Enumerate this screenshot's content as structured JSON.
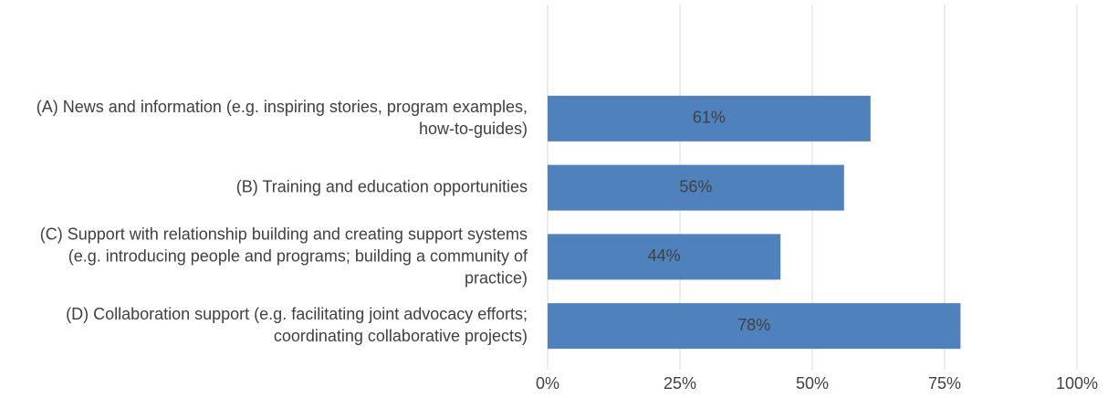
{
  "chart_data": {
    "type": "bar",
    "orientation": "horizontal",
    "categories": [
      "(A) News and information (e.g. inspiring stories, program examples, how-to-guides)",
      "(B) Training and education opportunities",
      "(C) Support with relationship building and creating support systems (e.g. introducing people and programs; building a community of practice)",
      "(D) Collaboration support (e.g. facilitating joint advocacy efforts; coordinating collaborative projects)"
    ],
    "values": [
      61,
      56,
      44,
      78
    ],
    "value_labels": [
      "61%",
      "56%",
      "44%",
      "78%"
    ],
    "color": "#4f81bd",
    "xlim": [
      0,
      100
    ],
    "xticks": [
      {
        "value": 0,
        "label": "0%"
      },
      {
        "value": 25,
        "label": "25%"
      },
      {
        "value": 50,
        "label": "50%"
      },
      {
        "value": 75,
        "label": "75%"
      },
      {
        "value": 100,
        "label": "100%"
      }
    ],
    "grid": true
  }
}
